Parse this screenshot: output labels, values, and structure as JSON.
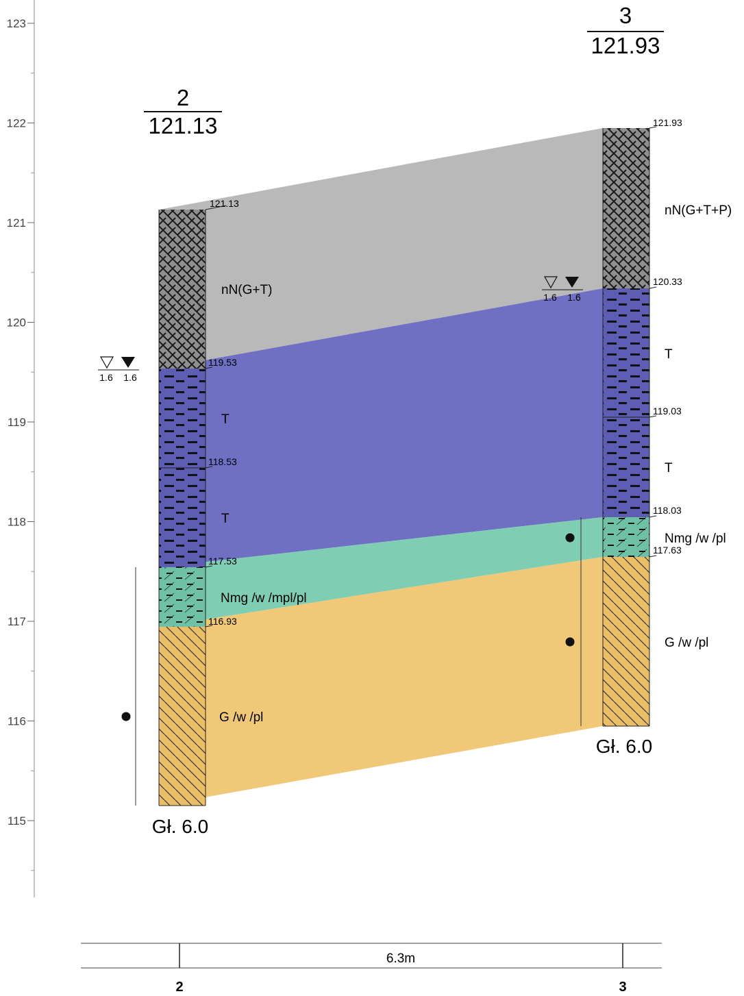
{
  "axis": {
    "ticks": [
      "123",
      "122",
      "121",
      "120",
      "119",
      "118",
      "117",
      "116",
      "115"
    ]
  },
  "boreholes": [
    {
      "number": "2",
      "elevation": "121.13",
      "depth_label": "Gł. 6.0",
      "water_left": "1.6",
      "water_right": "1.6",
      "layer_labels": [
        "nN(G+T)",
        "T",
        "T",
        "Nmg /w /mpl/pl",
        "G /w /pl"
      ],
      "boundary_labels": [
        "121.13",
        "119.53",
        "118.53",
        "117.53",
        "116.93"
      ]
    },
    {
      "number": "3",
      "elevation": "121.93",
      "depth_label": "Gł. 6.0",
      "water_left": "1.6",
      "water_right": "1.6",
      "layer_labels": [
        "nN(G+T+P)",
        "T",
        "T",
        "Nmg /w /pl",
        "G /w /pl"
      ],
      "boundary_labels": [
        "121.93",
        "120.33",
        "119.03",
        "118.03",
        "117.63"
      ]
    }
  ],
  "colors": {
    "fill": "#b9b9b9",
    "organic": "#6f6fc4",
    "silt": "#7fcdb2",
    "sand": "#f0c877"
  },
  "distance": {
    "label": "6.3m",
    "left": "2",
    "right": "3"
  }
}
